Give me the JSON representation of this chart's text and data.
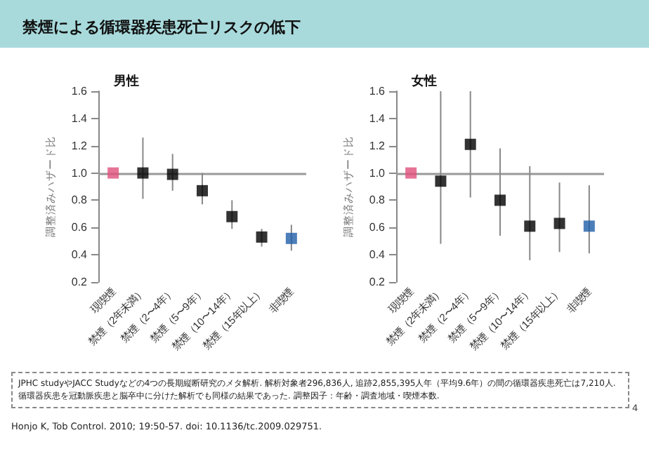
{
  "chart_data": [
    {
      "type": "scatter",
      "title": "禁煙による循環器疾患死亡リスクの低下",
      "subtitle": "男性",
      "ylabel": "調整済みハザード比",
      "marker": "square",
      "categories": [
        "現喫煙",
        "禁煙（2年未満）",
        "禁煙（2〜4年）",
        "禁煙（5〜9年）",
        "禁煙（10〜14年）",
        "禁煙（15年以上）",
        "非喫煙"
      ],
      "values": [
        1.0,
        1.0,
        0.99,
        0.87,
        0.68,
        0.53,
        0.52
      ],
      "colors": [
        "#e0507a",
        "#000000",
        "#000000",
        "#000000",
        "#000000",
        "#000000",
        "#1f5fa8"
      ],
      "errors": [
        null,
        [
          0.81,
          1.26
        ],
        [
          0.87,
          1.14
        ],
        [
          0.77,
          1.0
        ],
        [
          0.59,
          0.8
        ],
        [
          0.46,
          0.59
        ],
        [
          0.43,
          0.62
        ]
      ],
      "ylim": [
        0.2,
        1.6
      ],
      "yticks": [
        0.2,
        0.4,
        0.6,
        0.8,
        {
          "value": 1,
          "label": "1.0"
        },
        1.2,
        1.4,
        1.6
      ],
      "ref_lines": [
        {
          "axis": "y",
          "value": 1,
          "color": "#999999"
        }
      ],
      "annotations": [
        "JPHC studyやJACC Studyなどの4つの長期縦断研究のメタ解析. 解析対象者296,836人, 追跡2,855,395人年（平均9.6年）の間の循環器疾患死亡は7,210人. 循環器疾患を冠動脈疾患と脳卒中に分けた解析でも同様の結果であった. 調整因子：年齢・調査地域・喫煙本数.",
        "Honjo K, Tob Control. 2010; 19:50-57. doi: 10.1136/tc.2009.029751.",
        "4"
      ]
    },
    {
      "type": "scatter",
      "title": "女性",
      "ylabel": "調整済みハザード比",
      "marker": "square",
      "categories": [
        "現喫煙",
        "禁煙（2年未満）",
        "禁煙（2〜4年）",
        "禁煙（5〜9年）",
        "禁煙（10〜14年）",
        "禁煙（15年以上）",
        "非喫煙"
      ],
      "values": [
        1.0,
        0.94,
        1.21,
        0.8,
        0.61,
        0.63,
        0.61
      ],
      "colors": [
        "#e0507a",
        "#000000",
        "#000000",
        "#000000",
        "#000000",
        "#000000",
        "#1f5fa8"
      ],
      "errors": [
        null,
        [
          0.48,
          1.6
        ],
        [
          0.82,
          1.6
        ],
        [
          0.54,
          1.18
        ],
        [
          0.36,
          1.05
        ],
        [
          0.42,
          0.93
        ],
        [
          0.41,
          0.91
        ]
      ],
      "ylim": [
        0.2,
        1.6
      ],
      "yticks": [
        0.2,
        0.4,
        0.6,
        0.8,
        {
          "value": 1,
          "label": "1.0"
        },
        1.2,
        1.4,
        1.6
      ],
      "ref_lines": [
        {
          "axis": "y",
          "value": 1,
          "color": "#999999"
        }
      ]
    }
  ]
}
